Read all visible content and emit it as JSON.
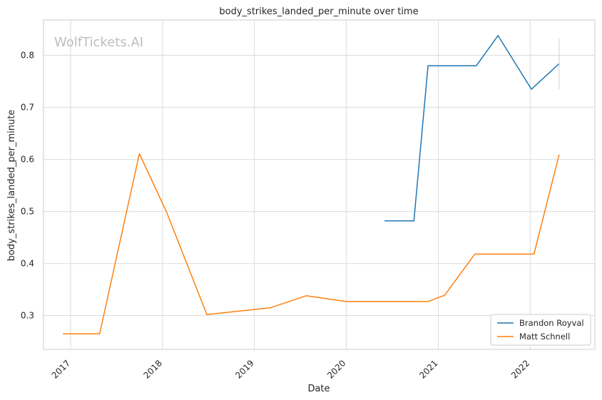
{
  "chart_data": {
    "type": "line",
    "title": "body_strikes_landed_per_minute over time",
    "xlabel": "Date",
    "ylabel": "body_strikes_landed_per_minute",
    "watermark": "WolfTickets.AI",
    "x_ticks": [
      "2017",
      "2018",
      "2019",
      "2020",
      "2021",
      "2022"
    ],
    "y_ticks": [
      "0.3",
      "0.4",
      "0.5",
      "0.6",
      "0.7",
      "0.8"
    ],
    "xlim": [
      "2016-09-15",
      "2022-09-15"
    ],
    "ylim": [
      0.235,
      0.868
    ],
    "grid": true,
    "legend_position": "lower-right",
    "series": [
      {
        "name": "Brandon Royval",
        "color": "#1f77b4",
        "points": [
          [
            "2020-06-01",
            0.482
          ],
          [
            "2020-09-26",
            0.482
          ],
          [
            "2020-11-21",
            0.78
          ],
          [
            "2021-06-01",
            0.78
          ],
          [
            "2021-08-26",
            0.838
          ],
          [
            "2022-01-06",
            0.735
          ],
          [
            "2022-04-26",
            0.784
          ]
        ],
        "error_bar": {
          "x": "2022-04-26",
          "low": 0.735,
          "high": 0.832
        }
      },
      {
        "name": "Matt Schnell",
        "color": "#ff7f0e",
        "points": [
          [
            "2016-12-01",
            0.265
          ],
          [
            "2017-04-26",
            0.265
          ],
          [
            "2017-10-01",
            0.611
          ],
          [
            "2018-01-16",
            0.5
          ],
          [
            "2018-06-26",
            0.302
          ],
          [
            "2019-03-06",
            0.315
          ],
          [
            "2019-07-26",
            0.338
          ],
          [
            "2019-12-31",
            0.327
          ],
          [
            "2020-11-21",
            0.327
          ],
          [
            "2021-01-26",
            0.339
          ],
          [
            "2021-05-26",
            0.418
          ],
          [
            "2022-01-16",
            0.418
          ],
          [
            "2022-04-26",
            0.609
          ]
        ]
      }
    ]
  }
}
